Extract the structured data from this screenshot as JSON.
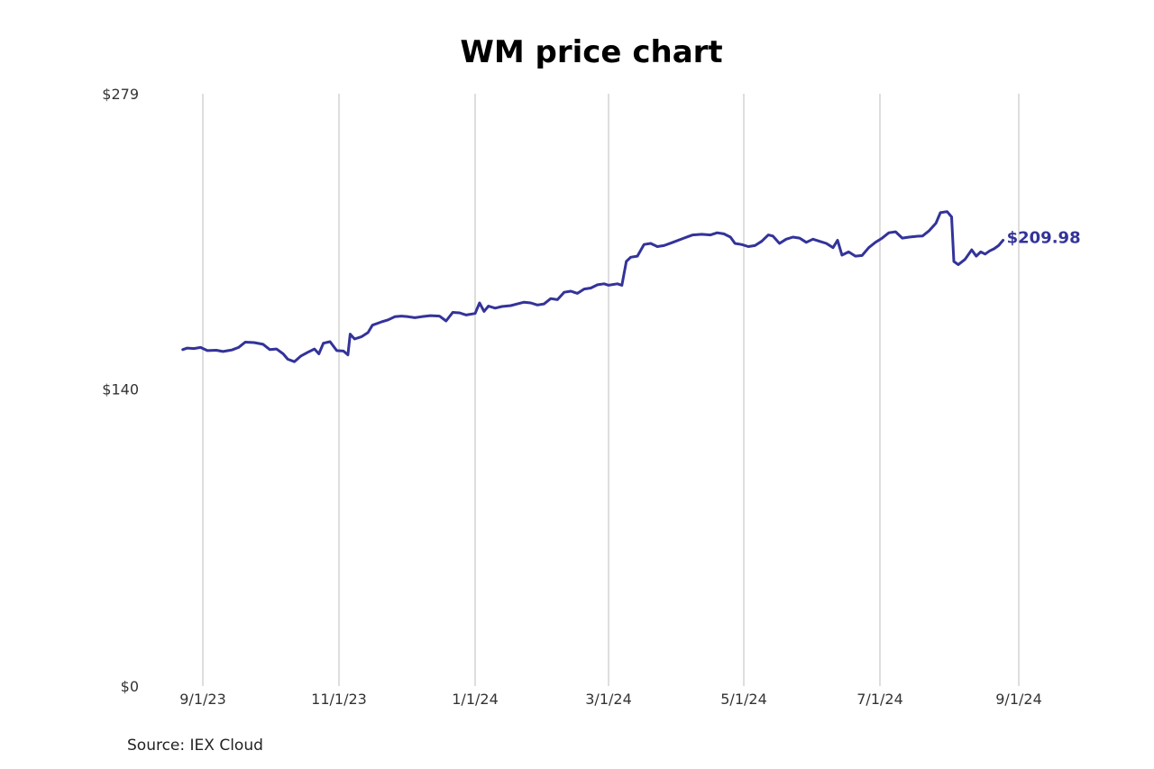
{
  "chart_data": {
    "type": "line",
    "title": "WM price chart",
    "xlabel": "",
    "ylabel": "",
    "ylim": [
      0,
      279
    ],
    "xlim": [
      "2023-08-21",
      "2024-09-01"
    ],
    "y_ticks": [
      {
        "value": 0,
        "label": "$0"
      },
      {
        "value": 140,
        "label": "$140"
      },
      {
        "value": 279,
        "label": "$279"
      }
    ],
    "x_ticks": [
      {
        "date": "2023-09-01",
        "label": "9/1/23"
      },
      {
        "date": "2023-11-01",
        "label": "11/1/23"
      },
      {
        "date": "2024-01-01",
        "label": "1/1/24"
      },
      {
        "date": "2024-03-01",
        "label": "3/1/24"
      },
      {
        "date": "2024-05-01",
        "label": "5/1/24"
      },
      {
        "date": "2024-07-01",
        "label": "7/1/24"
      },
      {
        "date": "2024-09-01",
        "label": "9/1/24"
      }
    ],
    "grid": {
      "vertical": true,
      "horizontal": false
    },
    "line_color": "#33339a",
    "end_label": "$209.98",
    "series": [
      {
        "name": "",
        "points": [
          [
            "2023-08-23",
            158.5
          ],
          [
            "2023-08-25",
            159.2
          ],
          [
            "2023-08-28",
            159.0
          ],
          [
            "2023-08-31",
            159.5
          ],
          [
            "2023-09-03",
            158.0
          ],
          [
            "2023-09-07",
            158.2
          ],
          [
            "2023-09-10",
            157.6
          ],
          [
            "2023-09-14",
            158.3
          ],
          [
            "2023-09-17",
            159.5
          ],
          [
            "2023-09-20",
            162.0
          ],
          [
            "2023-09-24",
            161.8
          ],
          [
            "2023-09-28",
            161.0
          ],
          [
            "2023-10-01",
            158.5
          ],
          [
            "2023-10-04",
            158.8
          ],
          [
            "2023-10-07",
            156.5
          ],
          [
            "2023-10-09",
            154.0
          ],
          [
            "2023-10-12",
            152.8
          ],
          [
            "2023-10-15",
            155.5
          ],
          [
            "2023-10-18",
            157.2
          ],
          [
            "2023-10-21",
            158.8
          ],
          [
            "2023-10-23",
            156.5
          ],
          [
            "2023-10-25",
            161.5
          ],
          [
            "2023-10-28",
            162.2
          ],
          [
            "2023-10-31",
            158.0
          ],
          [
            "2023-11-03",
            157.8
          ],
          [
            "2023-11-05",
            156.0
          ],
          [
            "2023-11-06",
            165.8
          ],
          [
            "2023-11-08",
            163.5
          ],
          [
            "2023-11-11",
            164.5
          ],
          [
            "2023-11-14",
            166.5
          ],
          [
            "2023-11-16",
            170.0
          ],
          [
            "2023-11-20",
            171.5
          ],
          [
            "2023-11-23",
            172.5
          ],
          [
            "2023-11-26",
            174.0
          ],
          [
            "2023-11-29",
            174.3
          ],
          [
            "2023-12-02",
            174.0
          ],
          [
            "2023-12-05",
            173.5
          ],
          [
            "2023-12-08",
            174.0
          ],
          [
            "2023-12-12",
            174.5
          ],
          [
            "2023-12-16",
            174.3
          ],
          [
            "2023-12-19",
            172.0
          ],
          [
            "2023-12-22",
            176.0
          ],
          [
            "2023-12-25",
            175.8
          ],
          [
            "2023-12-28",
            174.8
          ],
          [
            "2024-01-01",
            175.5
          ],
          [
            "2024-01-03",
            180.5
          ],
          [
            "2024-01-05",
            176.5
          ],
          [
            "2024-01-07",
            179.0
          ],
          [
            "2024-01-10",
            178.0
          ],
          [
            "2024-01-13",
            178.8
          ],
          [
            "2024-01-17",
            179.2
          ],
          [
            "2024-01-20",
            180.0
          ],
          [
            "2024-01-23",
            180.8
          ],
          [
            "2024-01-26",
            180.5
          ],
          [
            "2024-01-29",
            179.5
          ],
          [
            "2024-02-01",
            180.0
          ],
          [
            "2024-02-04",
            182.5
          ],
          [
            "2024-02-07",
            182.0
          ],
          [
            "2024-02-10",
            185.5
          ],
          [
            "2024-02-13",
            186.0
          ],
          [
            "2024-02-16",
            185.0
          ],
          [
            "2024-02-19",
            187.0
          ],
          [
            "2024-02-22",
            187.5
          ],
          [
            "2024-02-25",
            189.0
          ],
          [
            "2024-02-28",
            189.5
          ],
          [
            "2024-03-01",
            188.8
          ],
          [
            "2024-03-05",
            189.5
          ],
          [
            "2024-03-07",
            188.8
          ],
          [
            "2024-03-09",
            200.0
          ],
          [
            "2024-03-11",
            202.0
          ],
          [
            "2024-03-14",
            202.5
          ],
          [
            "2024-03-17",
            208.0
          ],
          [
            "2024-03-20",
            208.5
          ],
          [
            "2024-03-23",
            207.0
          ],
          [
            "2024-03-26",
            207.5
          ],
          [
            "2024-03-30",
            209.0
          ],
          [
            "2024-04-04",
            211.0
          ],
          [
            "2024-04-08",
            212.5
          ],
          [
            "2024-04-12",
            212.8
          ],
          [
            "2024-04-16",
            212.5
          ],
          [
            "2024-04-19",
            213.5
          ],
          [
            "2024-04-22",
            213.0
          ],
          [
            "2024-04-25",
            211.5
          ],
          [
            "2024-04-27",
            208.5
          ],
          [
            "2024-04-30",
            208.0
          ],
          [
            "2024-05-03",
            207.0
          ],
          [
            "2024-05-06",
            207.5
          ],
          [
            "2024-05-09",
            209.5
          ],
          [
            "2024-05-12",
            212.5
          ],
          [
            "2024-05-14",
            212.0
          ],
          [
            "2024-05-17",
            208.5
          ],
          [
            "2024-05-20",
            210.5
          ],
          [
            "2024-05-23",
            211.5
          ],
          [
            "2024-05-26",
            211.0
          ],
          [
            "2024-05-29",
            209.0
          ],
          [
            "2024-06-01",
            210.5
          ],
          [
            "2024-06-04",
            209.5
          ],
          [
            "2024-06-07",
            208.5
          ],
          [
            "2024-06-10",
            206.5
          ],
          [
            "2024-06-12",
            210.0
          ],
          [
            "2024-06-14",
            203.0
          ],
          [
            "2024-06-17",
            204.5
          ],
          [
            "2024-06-20",
            202.5
          ],
          [
            "2024-06-23",
            202.8
          ],
          [
            "2024-06-26",
            206.5
          ],
          [
            "2024-06-29",
            209.0
          ],
          [
            "2024-07-02",
            211.0
          ],
          [
            "2024-07-05",
            213.5
          ],
          [
            "2024-07-08",
            214.0
          ],
          [
            "2024-07-11",
            211.0
          ],
          [
            "2024-07-14",
            211.5
          ],
          [
            "2024-07-17",
            211.8
          ],
          [
            "2024-07-20",
            212.0
          ],
          [
            "2024-07-23",
            214.5
          ],
          [
            "2024-07-26",
            218.0
          ],
          [
            "2024-07-28",
            223.0
          ],
          [
            "2024-07-31",
            223.5
          ],
          [
            "2024-08-02",
            221.0
          ],
          [
            "2024-08-03",
            200.0
          ],
          [
            "2024-08-05",
            198.5
          ],
          [
            "2024-08-08",
            201.0
          ],
          [
            "2024-08-11",
            205.5
          ],
          [
            "2024-08-13",
            202.5
          ],
          [
            "2024-08-15",
            204.5
          ],
          [
            "2024-08-17",
            203.5
          ],
          [
            "2024-08-19",
            205.0
          ],
          [
            "2024-08-21",
            206.0
          ],
          [
            "2024-08-23",
            207.5
          ],
          [
            "2024-08-25",
            209.98
          ]
        ]
      }
    ]
  },
  "footer": {
    "source": "Source: IEX Cloud"
  }
}
